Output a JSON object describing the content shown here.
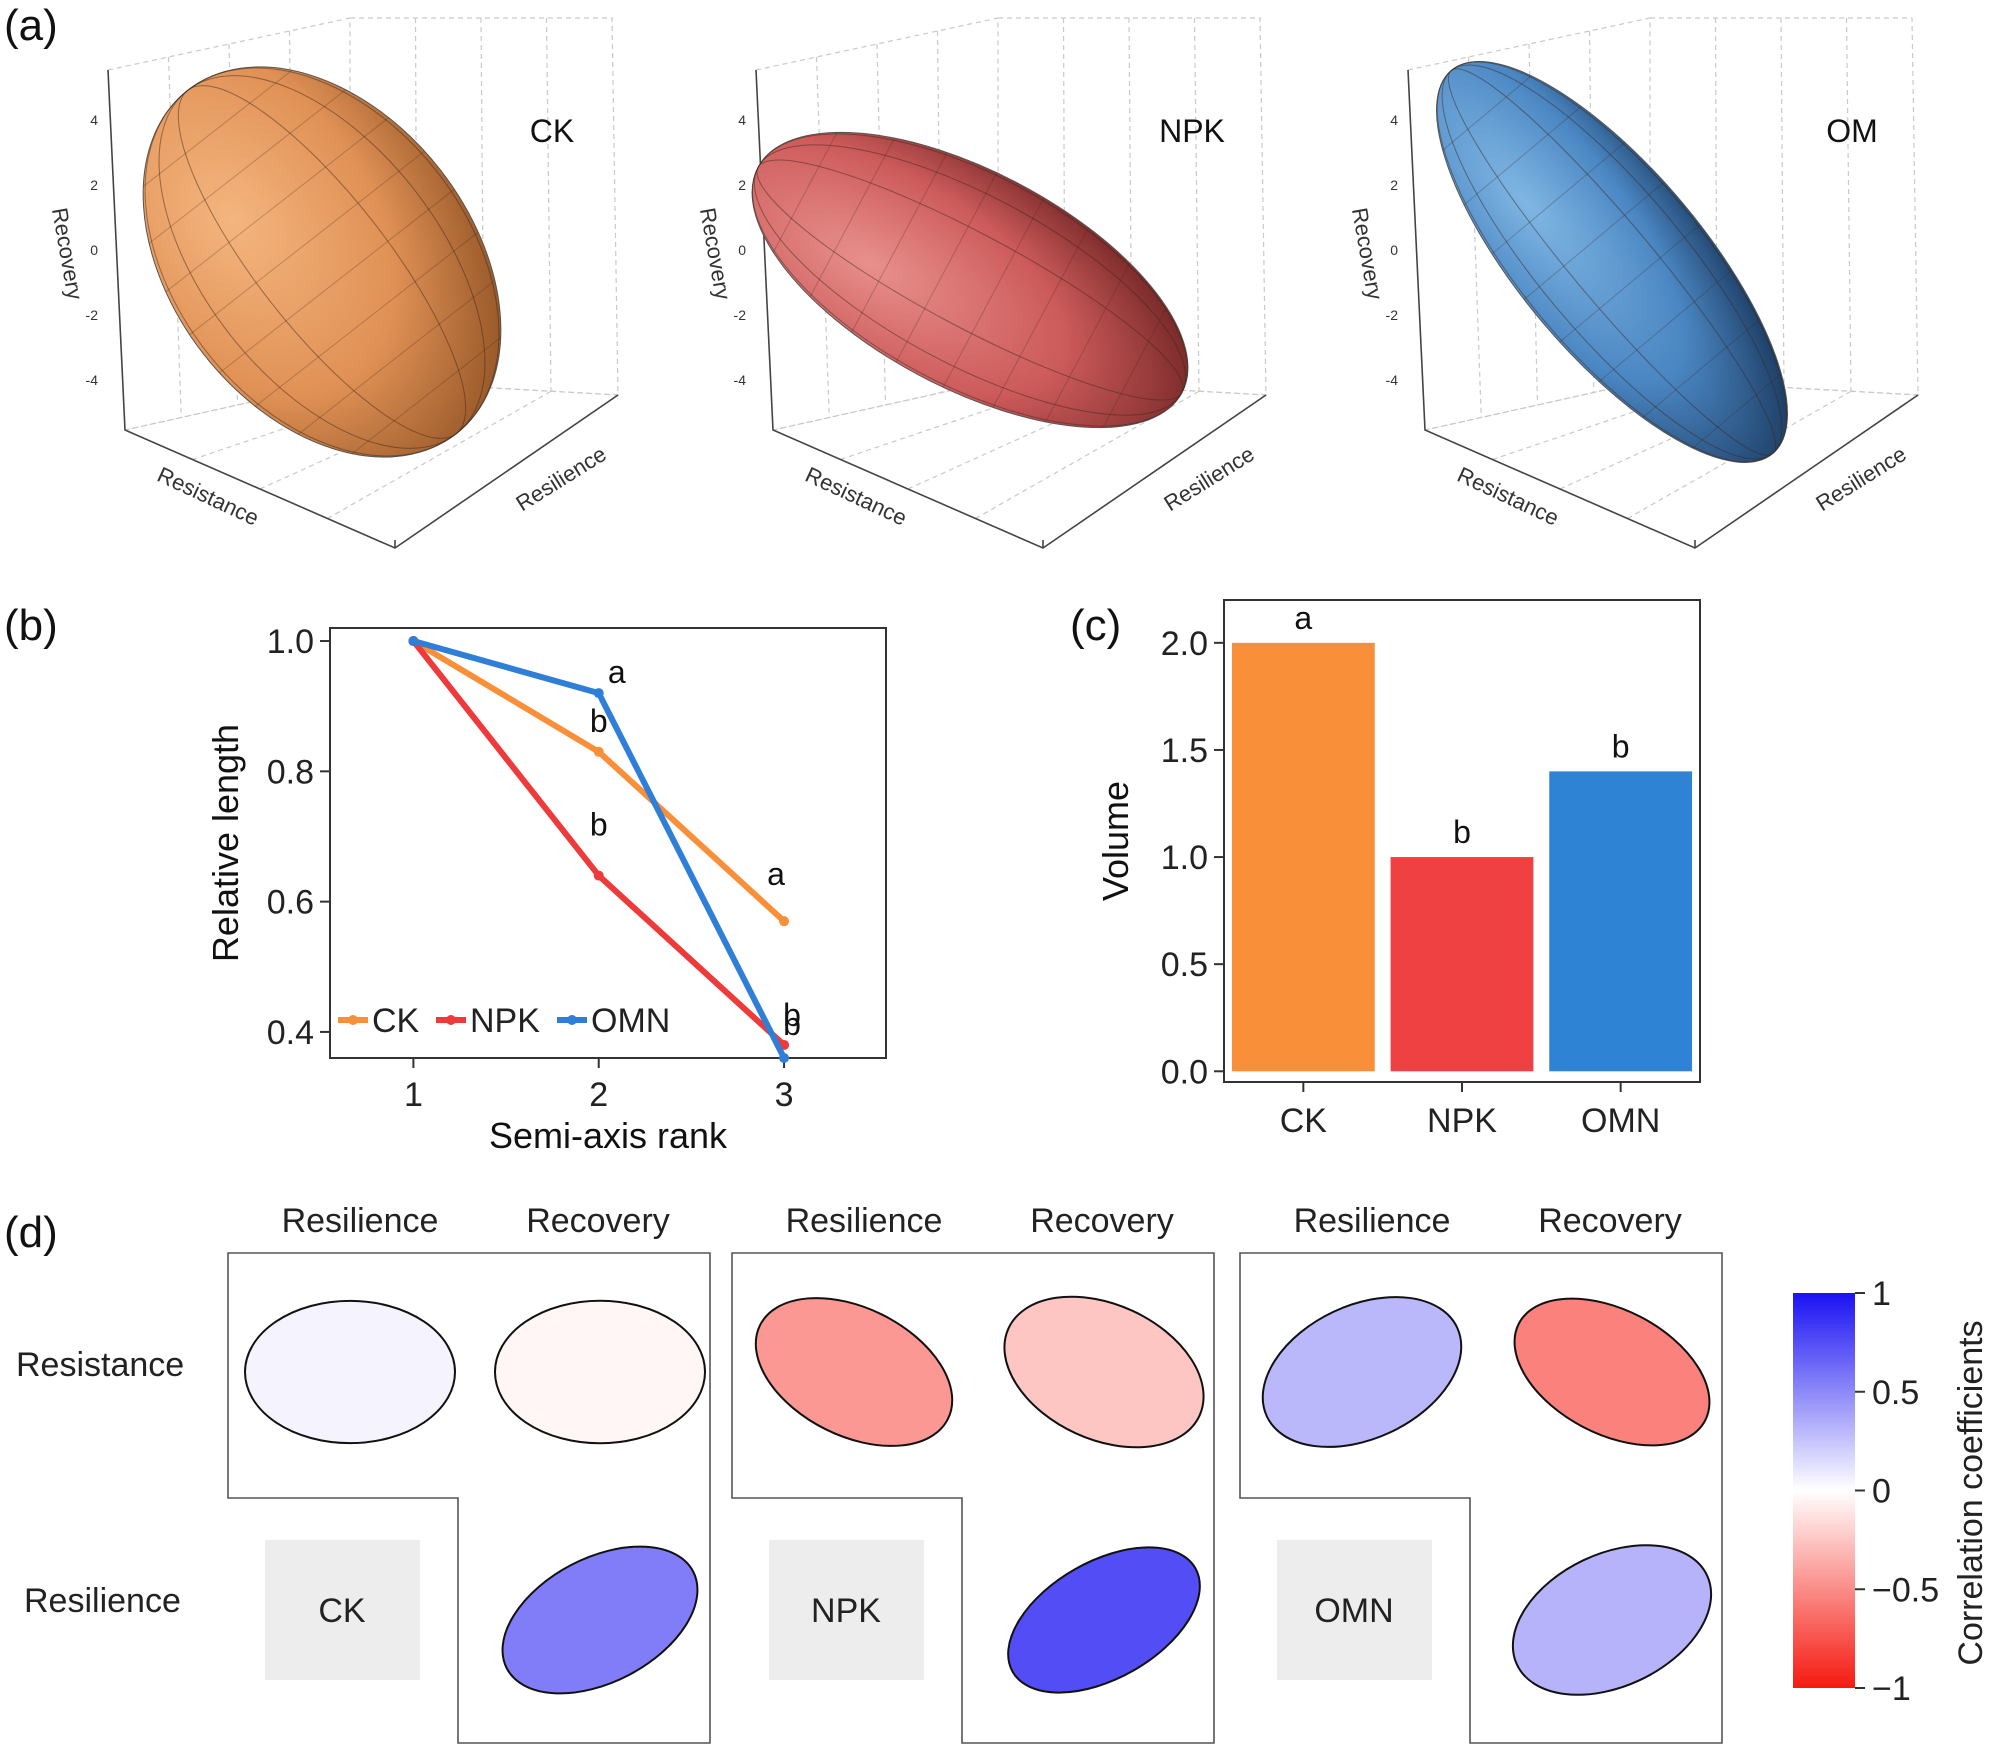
{
  "panel_labels": {
    "a": "(a)",
    "b": "(b)",
    "c": "(c)",
    "d": "(d)"
  },
  "colors": {
    "CK": "#f98f39",
    "NPK": "#ee4040",
    "OMN": "#2f83d4",
    "pos": "#3b2cf0",
    "neg": "#f03a2a"
  },
  "chart_data": [
    {
      "id": "a",
      "type": "ellipsoid3d",
      "axes": {
        "x": "Resistance",
        "y": "Resilience",
        "z": "Recovery"
      },
      "z_ticks": [
        "4",
        "2",
        "0",
        "-2",
        "-4"
      ],
      "plots": [
        {
          "name": "CK",
          "color": "#e6995a"
        },
        {
          "name": "NPK",
          "color": "#cf5a5a"
        },
        {
          "name": "OM",
          "color": "#4a8cc8"
        }
      ]
    },
    {
      "id": "b",
      "type": "line",
      "xlabel": "Semi-axis rank",
      "ylabel": "Relative length",
      "x": [
        1,
        2,
        3
      ],
      "xlim": [
        0.55,
        3.55
      ],
      "ylim": [
        0.36,
        1.02
      ],
      "x_ticks": [
        "1",
        "2",
        "3"
      ],
      "y_ticks": [
        0.4,
        0.6,
        0.8,
        1.0
      ],
      "y_tick_labels": [
        "0.4",
        "0.6",
        "0.8",
        "1.0"
      ],
      "series": [
        {
          "name": "CK",
          "values": [
            1.0,
            0.83,
            0.57
          ],
          "color": "#f98f39",
          "labels": [
            "",
            "b",
            "a"
          ]
        },
        {
          "name": "NPK",
          "values": [
            1.0,
            0.64,
            0.38
          ],
          "color": "#ee3a3a",
          "labels": [
            "",
            "b",
            "b"
          ]
        },
        {
          "name": "OMN",
          "values": [
            1.0,
            0.92,
            0.36
          ],
          "color": "#2f7fd8",
          "labels": [
            "",
            "a",
            "b"
          ]
        }
      ],
      "legend": "bottom-left"
    },
    {
      "id": "c",
      "type": "bar",
      "ylabel": "Volume",
      "categories": [
        "CK",
        "NPK",
        "OMN"
      ],
      "values": [
        2.0,
        1.0,
        1.4
      ],
      "colors": [
        "#f98f39",
        "#ef4141",
        "#2f83d4"
      ],
      "labels": [
        "a",
        "b",
        "b"
      ],
      "ylim": [
        -0.05,
        2.2
      ],
      "y_ticks": [
        0.0,
        0.5,
        1.0,
        1.5,
        2.0
      ],
      "y_tick_labels": [
        "0.0",
        "0.5",
        "1.0",
        "1.5",
        "2.0"
      ]
    },
    {
      "id": "d",
      "type": "correlation_matrix",
      "col_labels": [
        "Resilience",
        "Recovery"
      ],
      "row_labels": [
        "Resistance",
        "Resilience"
      ],
      "legend_title": "Correlation coefficients",
      "legend_ticks": [
        "1",
        "0.5",
        "0",
        "−0.5",
        "−1"
      ],
      "legend_values": [
        1,
        0.5,
        0,
        -0.5,
        -1
      ],
      "groups": [
        {
          "name": "CK",
          "resistance_resilience": 0.05,
          "resistance_recovery": -0.04,
          "resilience_recovery": 0.55
        },
        {
          "name": "NPK",
          "resistance_resilience": -0.45,
          "resistance_recovery": -0.25,
          "resilience_recovery": 0.75
        },
        {
          "name": "OMN",
          "resistance_resilience": 0.3,
          "resistance_recovery": -0.55,
          "resilience_recovery": 0.32
        }
      ]
    }
  ]
}
